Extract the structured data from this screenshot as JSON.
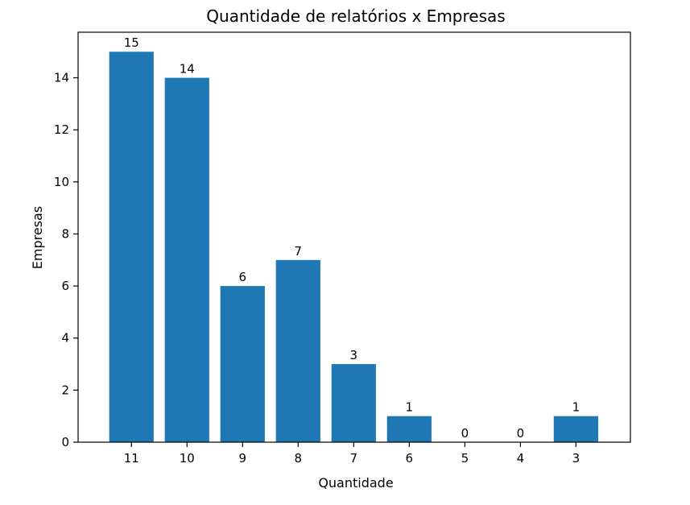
{
  "chart_data": {
    "type": "bar",
    "title": "Quantidade de relatórios x Empresas",
    "xlabel": "Quantidade",
    "ylabel": "Empresas",
    "categories": [
      "11",
      "10",
      "9",
      "8",
      "7",
      "6",
      "5",
      "4",
      "3"
    ],
    "values": [
      15,
      14,
      6,
      7,
      3,
      1,
      0,
      0,
      1
    ],
    "data_labels": [
      "15",
      "14",
      "6",
      "7",
      "3",
      "1",
      "0",
      "0",
      "1"
    ],
    "yticks": [
      0,
      2,
      4,
      6,
      8,
      10,
      12,
      14
    ],
    "ytick_labels": [
      "0",
      "2",
      "4",
      "6",
      "8",
      "10",
      "12",
      "14"
    ],
    "ylim": [
      0,
      15.75
    ],
    "grid": false,
    "bar_color": "#1f77b4"
  }
}
